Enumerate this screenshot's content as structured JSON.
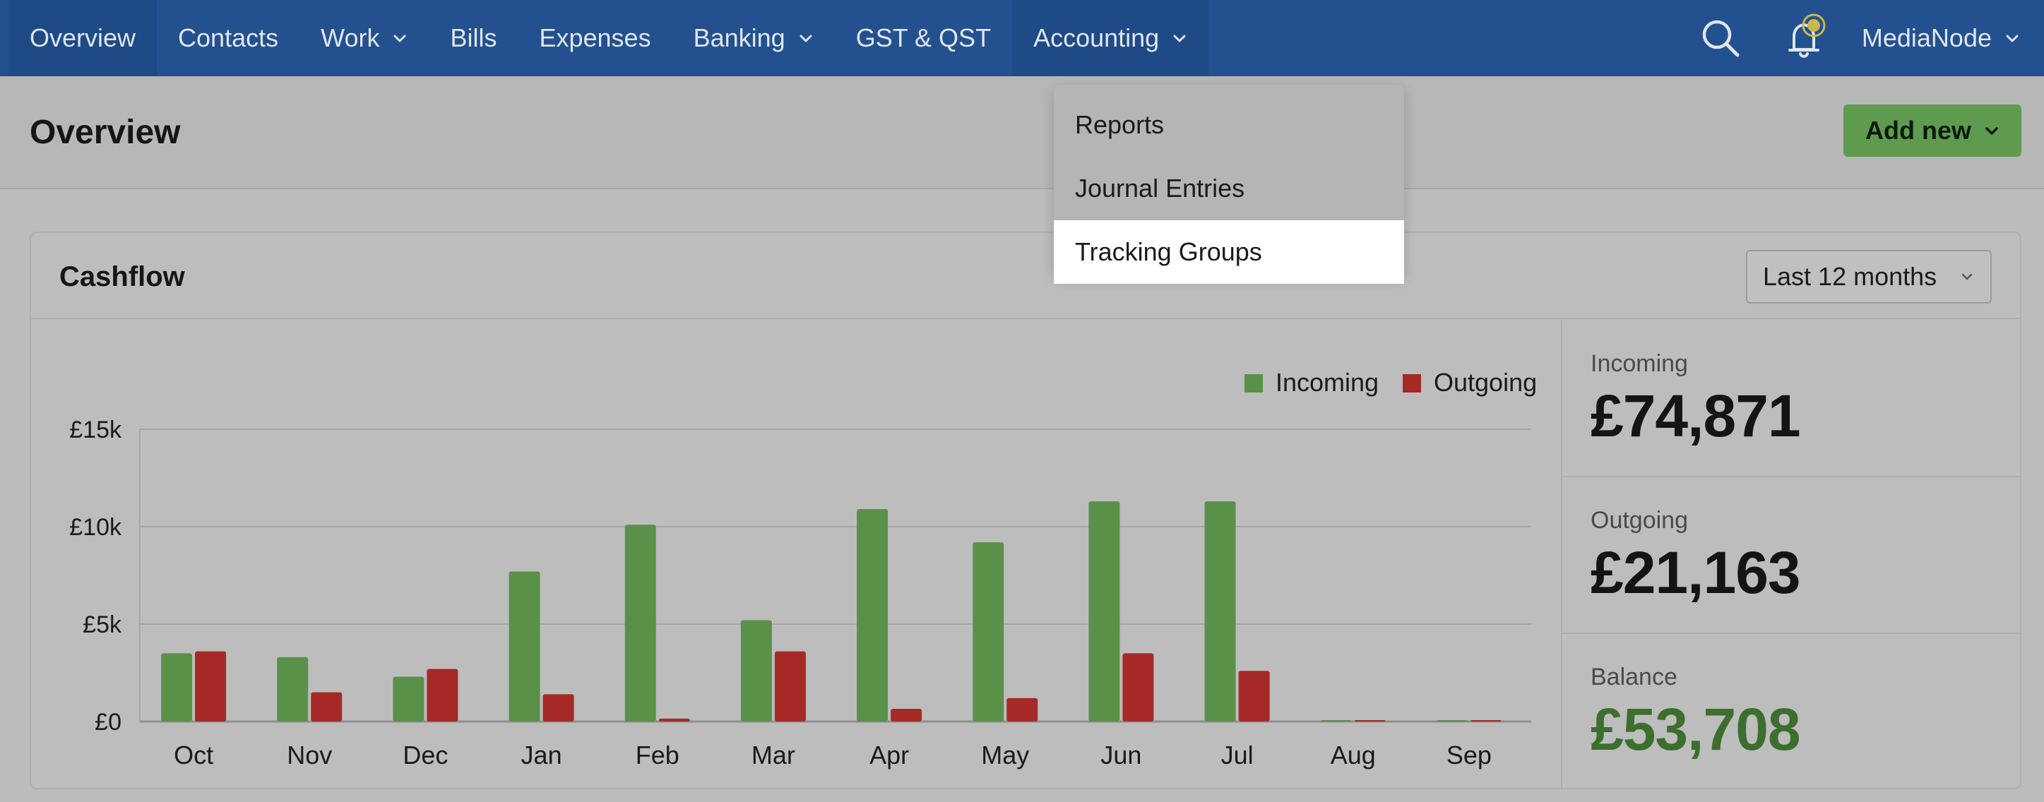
{
  "nav": {
    "items": [
      {
        "label": "Overview",
        "has_dropdown": false
      },
      {
        "label": "Contacts",
        "has_dropdown": false
      },
      {
        "label": "Work",
        "has_dropdown": true
      },
      {
        "label": "Bills",
        "has_dropdown": false
      },
      {
        "label": "Expenses",
        "has_dropdown": false
      },
      {
        "label": "Banking",
        "has_dropdown": true
      },
      {
        "label": "GST & QST",
        "has_dropdown": false
      },
      {
        "label": "Accounting",
        "has_dropdown": true
      }
    ],
    "search_icon": "search-icon",
    "notification_icon": "bell-icon",
    "user_name": "MediaNode"
  },
  "accounting_menu": {
    "items": [
      "Reports",
      "Journal Entries",
      "Tracking Groups"
    ],
    "highlighted": "Tracking Groups"
  },
  "page": {
    "title": "Overview",
    "add_new_label": "Add new"
  },
  "cashflow": {
    "title": "Cashflow",
    "period": "Last 12 months",
    "stats": {
      "incoming_label": "Incoming",
      "incoming_value": "£74,871",
      "outgoing_label": "Outgoing",
      "outgoing_value": "£21,163",
      "balance_label": "Balance",
      "balance_value": "£53,708"
    }
  },
  "colors": {
    "nav_bg": "#23508f",
    "incoming": "#5a9149",
    "outgoing": "#a52a26",
    "add_new": "#5f9b4f",
    "balance": "#3c6e2e"
  },
  "chart_data": {
    "type": "bar",
    "categories": [
      "Oct",
      "Nov",
      "Dec",
      "Jan",
      "Feb",
      "Mar",
      "Apr",
      "May",
      "Jun",
      "Jul",
      "Aug",
      "Sep"
    ],
    "series": [
      {
        "name": "Incoming",
        "values": [
          3500,
          3300,
          2300,
          7700,
          10100,
          5200,
          10900,
          9200,
          11300,
          11300,
          0,
          0
        ]
      },
      {
        "name": "Outgoing",
        "values": [
          3600,
          1500,
          2700,
          1400,
          150,
          3600,
          650,
          1200,
          3500,
          2600,
          0,
          0
        ]
      }
    ],
    "yticks": [
      "£0",
      "£5k",
      "£10k",
      "£15k"
    ],
    "ylim": [
      0,
      15000
    ],
    "legend_position": "top-right",
    "grid": true
  }
}
